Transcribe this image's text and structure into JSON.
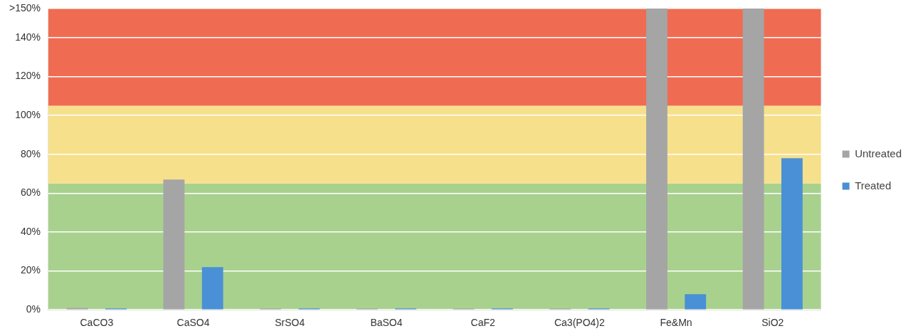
{
  "chart_data": {
    "type": "bar",
    "categories": [
      "CaCO3",
      "CaSO4",
      "SrSO4",
      "BaSO4",
      "CaF2",
      "Ca3(PO4)2",
      "Fe&Mn",
      "SiO2"
    ],
    "series": [
      {
        "name": "Untreated",
        "color": "#a5a5a5",
        "values": [
          1,
          67,
          0,
          0,
          0,
          0,
          155,
          155
        ]
      },
      {
        "name": "Treated",
        "color": "#4a90d6",
        "values": [
          0,
          22,
          0,
          0,
          0,
          0,
          8,
          78
        ]
      }
    ],
    "ylim": [
      0,
      155
    ],
    "yticks": [
      {
        "value": 0,
        "label": "0%"
      },
      {
        "value": 20,
        "label": "20%"
      },
      {
        "value": 40,
        "label": "40%"
      },
      {
        "value": 60,
        "label": "60%"
      },
      {
        "value": 80,
        "label": "80%"
      },
      {
        "value": 100,
        "label": "100%"
      },
      {
        "value": 120,
        "label": "120%"
      },
      {
        "value": 140,
        "label": "140%"
      },
      {
        "value": 155,
        "label": ">150%"
      }
    ],
    "bands": [
      {
        "axis": "y",
        "from": 0,
        "to": 65,
        "color": "#a9d18e"
      },
      {
        "axis": "y",
        "from": 65,
        "to": 105,
        "color": "#f6e08c"
      },
      {
        "axis": "y",
        "from": 105,
        "to": 155,
        "color": "#ef6c52"
      }
    ],
    "grid": "y",
    "legend": "right"
  }
}
